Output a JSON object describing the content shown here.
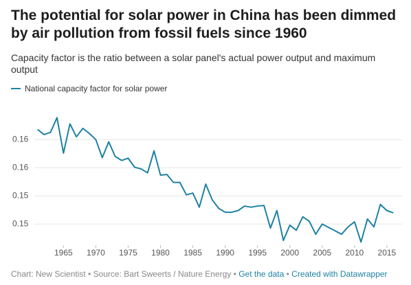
{
  "chart_data": {
    "type": "line",
    "title": "The potential for solar power in China has been dimmed by air pollution from fossil fuels since 1960",
    "subtitle": "Capacity factor is the ratio between a solar panel's actual power output and maximum output",
    "x": [
      1961,
      1962,
      1963,
      1964,
      1965,
      1966,
      1967,
      1968,
      1969,
      1970,
      1971,
      1972,
      1973,
      1974,
      1975,
      1976,
      1977,
      1978,
      1979,
      1980,
      1981,
      1982,
      1983,
      1984,
      1985,
      1986,
      1987,
      1988,
      1989,
      1990,
      1991,
      1992,
      1993,
      1994,
      1995,
      1996,
      1997,
      1998,
      1999,
      2000,
      2001,
      2002,
      2003,
      2004,
      2005,
      2006,
      2007,
      2008,
      2009,
      2010,
      2011,
      2012,
      2013,
      2014,
      2015,
      2016
    ],
    "series": [
      {
        "name": "National capacity factor for solar power",
        "color": "#1d81a2",
        "values": [
          0.1643,
          0.1634,
          0.1638,
          0.1664,
          0.1601,
          0.1653,
          0.163,
          0.1645,
          0.1636,
          0.1625,
          0.1593,
          0.1621,
          0.1595,
          0.1588,
          0.1592,
          0.1576,
          0.1573,
          0.1566,
          0.1605,
          0.1562,
          0.1563,
          0.1549,
          0.1549,
          0.1527,
          0.153,
          0.1505,
          0.1546,
          0.1518,
          0.1503,
          0.1496,
          0.1496,
          0.1499,
          0.1507,
          0.1505,
          0.1507,
          0.1508,
          0.1468,
          0.1499,
          0.1446,
          0.1473,
          0.1464,
          0.1488,
          0.148,
          0.1457,
          0.1475,
          0.1469,
          0.1463,
          0.1457,
          0.147,
          0.1479,
          0.1443,
          0.1484,
          0.147,
          0.151,
          0.1499,
          0.1495
        ]
      }
    ],
    "xlim": [
      1960.5,
      2016.5
    ],
    "xticks": [
      1965,
      1970,
      1975,
      1980,
      1985,
      1990,
      1995,
      2000,
      2005,
      2010,
      2015
    ],
    "ylim": [
      0.144,
      0.169
    ],
    "yticks": [
      {
        "value": 0.1625,
        "label": "0.16"
      },
      {
        "value": 0.1575,
        "label": "0.16"
      },
      {
        "value": 0.1525,
        "label": "0.15"
      },
      {
        "value": 0.1475,
        "label": "0.15"
      }
    ],
    "grid": true,
    "footer": {
      "credit": "Chart: New Scientist • Source: Bart Sweerts / Nature Energy •",
      "get_data": "Get the data",
      "separator": "•",
      "created_with": "Created with Datawrapper"
    }
  }
}
